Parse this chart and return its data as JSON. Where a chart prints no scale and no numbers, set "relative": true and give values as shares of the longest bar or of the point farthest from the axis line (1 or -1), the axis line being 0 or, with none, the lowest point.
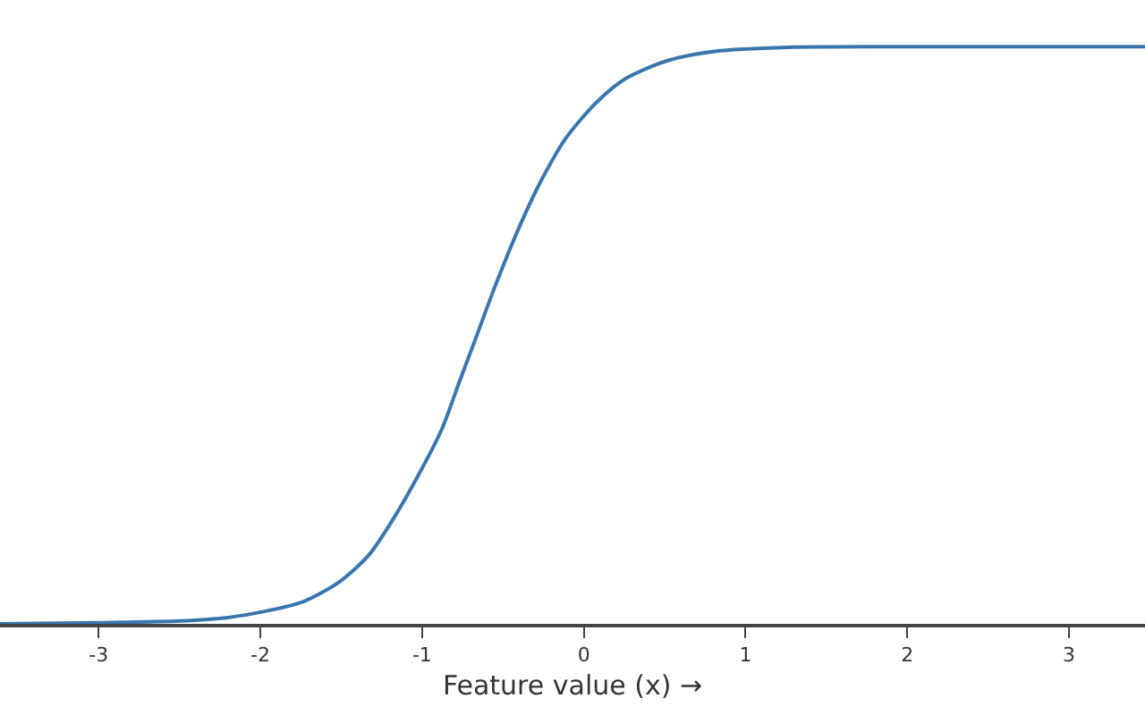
{
  "chart_data": {
    "type": "line",
    "xlabel": "Feature value (x) →",
    "relative": true,
    "x": [
      -3.61,
      -3.0,
      -2.5,
      -2.2,
      -1.95,
      -1.73,
      -1.51,
      -1.33,
      -1.18,
      -1.03,
      -0.88,
      -0.77,
      -0.66,
      -0.55,
      -0.4,
      -0.26,
      -0.11,
      0.08,
      0.26,
      0.52,
      0.81,
      1.26,
      2.0,
      3.47
    ],
    "series": [
      {
        "color": "#3a76ae",
        "values": [
          0.0,
          0.002,
          0.005,
          0.011,
          0.023,
          0.039,
          0.073,
          0.119,
          0.181,
          0.254,
          0.336,
          0.419,
          0.501,
          0.584,
          0.687,
          0.77,
          0.842,
          0.904,
          0.945,
          0.976,
          0.992,
          0.999,
          1.0,
          1.0
        ]
      }
    ],
    "xlim": [
      -3.61,
      3.47
    ],
    "xticks": [
      -3,
      -2,
      -1,
      0,
      1,
      2,
      3
    ]
  }
}
